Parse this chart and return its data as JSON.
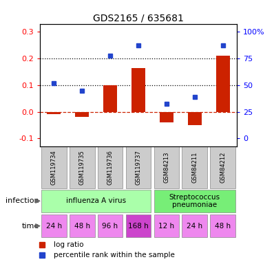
{
  "title": "GDS2165 / 635681",
  "samples": [
    "GSM119734",
    "GSM119735",
    "GSM119736",
    "GSM119737",
    "GSM84213",
    "GSM84211",
    "GSM84212"
  ],
  "log_ratio": [
    -0.01,
    -0.02,
    0.1,
    0.165,
    -0.04,
    -0.05,
    0.21
  ],
  "percentile_y": [
    0.108,
    0.08,
    0.21,
    0.248,
    0.03,
    0.055,
    0.248
  ],
  "infection_groups": [
    {
      "label": "influenza A virus",
      "start": 0,
      "end": 4,
      "color": "#aaffaa"
    },
    {
      "label": "Streptococcus\npneumoniae",
      "start": 4,
      "end": 7,
      "color": "#77ee77"
    }
  ],
  "time_labels": [
    "24 h",
    "48 h",
    "96 h",
    "168 h",
    "12 h",
    "24 h",
    "48 h"
  ],
  "time_colors": [
    "#ee88ee",
    "#ee88ee",
    "#ee88ee",
    "#cc44cc",
    "#ee88ee",
    "#ee88ee",
    "#ee88ee"
  ],
  "left_yticks": [
    -0.1,
    0.0,
    0.1,
    0.2,
    0.3
  ],
  "right_ytick_labels": [
    "0",
    "25",
    "50",
    "75",
    "100%"
  ],
  "right_ytick_pos": [
    -0.1,
    0.0,
    0.1,
    0.2,
    0.3
  ],
  "ylim": [
    -0.13,
    0.33
  ],
  "bar_color": "#cc2200",
  "dot_color": "#2244cc",
  "dotted_line_values": [
    0.1,
    0.2
  ],
  "zero_line_value": 0.0,
  "background_color": "#ffffff",
  "sample_box_color": "#cccccc",
  "bar_width": 0.5
}
